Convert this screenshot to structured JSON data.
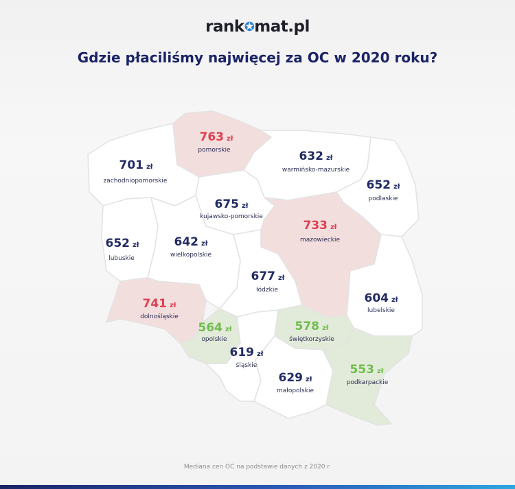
{
  "logo": {
    "left": "rank",
    "right": "mat.pl"
  },
  "title": "Gdzie płaciliśmy najwięcej za OC w 2020 roku?",
  "unit": "zł",
  "colors": {
    "high": "#e03f4f",
    "mid": "#222b63",
    "low": "#6fbc4c",
    "fill_high": "#f3dede",
    "fill_mid": "#ffffff",
    "fill_low": "#e2ebd9",
    "border": "#e3e3e3"
  },
  "regions": [
    {
      "id": "pomorskie",
      "name": "pomorskie",
      "value": 763,
      "tier": "high"
    },
    {
      "id": "zachodniopomorskie",
      "name": "zachodniopomorskie",
      "value": 701,
      "tier": "mid"
    },
    {
      "id": "warminsko-mazurskie",
      "name": "warmińsko-mazurskie",
      "value": 632,
      "tier": "mid"
    },
    {
      "id": "podlaskie",
      "name": "podlaskie",
      "value": 652,
      "tier": "mid"
    },
    {
      "id": "kujawsko-pomorskie",
      "name": "kujawsko-pomorskie",
      "value": 675,
      "tier": "mid"
    },
    {
      "id": "mazowieckie",
      "name": "mazowieckie",
      "value": 733,
      "tier": "high"
    },
    {
      "id": "lubuskie",
      "name": "lubuskie",
      "value": 652,
      "tier": "mid"
    },
    {
      "id": "wielkopolskie",
      "name": "wielkopolskie",
      "value": 642,
      "tier": "mid"
    },
    {
      "id": "lodzkie",
      "name": "łódzkie",
      "value": 677,
      "tier": "mid"
    },
    {
      "id": "lubelskie",
      "name": "lubelskie",
      "value": 604,
      "tier": "mid"
    },
    {
      "id": "dolnoslaskie",
      "name": "dolnośląskie",
      "value": 741,
      "tier": "high"
    },
    {
      "id": "opolskie",
      "name": "opolskie",
      "value": 564,
      "tier": "low"
    },
    {
      "id": "swietokrzyskie",
      "name": "świętkorzyskie",
      "value": 578,
      "tier": "low"
    },
    {
      "id": "slaskie",
      "name": "śląskie",
      "value": 619,
      "tier": "mid"
    },
    {
      "id": "malopolskie",
      "name": "małopolskie",
      "value": 629,
      "tier": "mid"
    },
    {
      "id": "podkarpackie",
      "name": "podkarpackie",
      "value": 553,
      "tier": "low"
    }
  ],
  "footer": "Mediana cen OC na podstawie danych z 2020 r."
}
